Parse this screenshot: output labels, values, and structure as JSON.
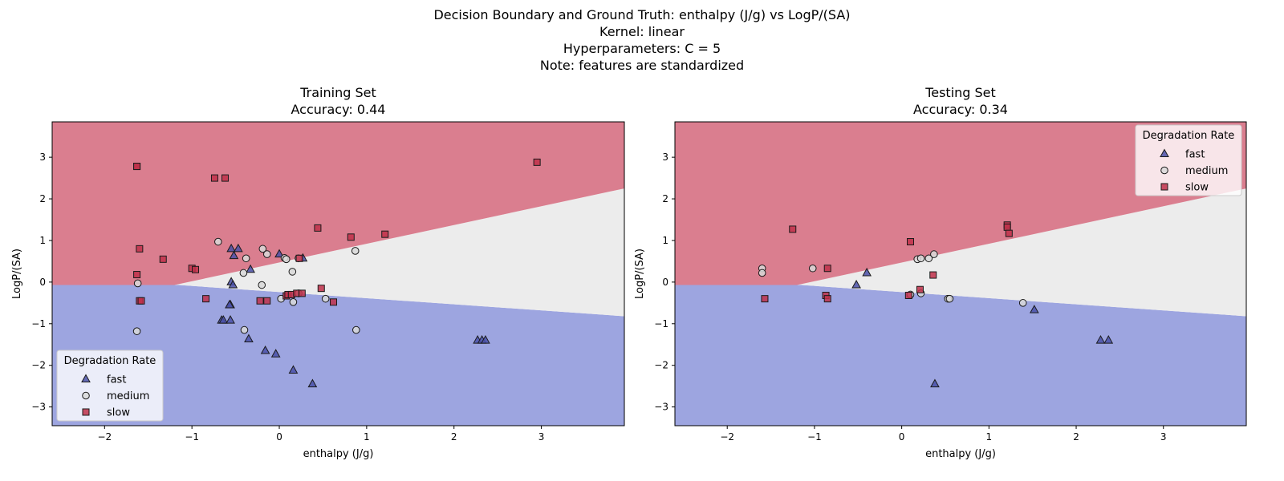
{
  "figure": {
    "suptitle_lines": [
      "Decision Boundary and Ground Truth: enthalpy (J/g) vs LogP/(SA)",
      "Kernel: linear",
      "Hyperparameters: C = 5",
      "Note: features are standardized"
    ]
  },
  "colors": {
    "fast_region": "#9da5e0",
    "medium_region": "#ececec",
    "slow_region": "#da7e8f",
    "fast_marker": "#4a50a8",
    "medium_marker": "#d9d9d9",
    "slow_marker": "#c0304a"
  },
  "chart_data": [
    {
      "type": "scatter",
      "panel": "train",
      "title": "Training Set",
      "subtitle": "Accuracy: 0.44",
      "xlabel": "enthalpy (J/g)",
      "ylabel": "LogP/(SA)",
      "xlim": [
        -2.6,
        3.95
      ],
      "ylim": [
        -3.45,
        3.85
      ],
      "xticks": [
        -2,
        -1,
        0,
        1,
        2,
        3
      ],
      "yticks": [
        -3,
        -2,
        -1,
        0,
        1,
        2,
        3
      ],
      "xtick_labels": [
        "−2",
        "−1",
        "0",
        "1",
        "2",
        "3"
      ],
      "ytick_labels": [
        "−3",
        "−2",
        "−1",
        "0",
        "1",
        "2",
        "3"
      ],
      "grid": false,
      "legend": {
        "title": "Degradation Rate",
        "position": "lower-left",
        "entries": [
          "fast",
          "medium",
          "slow"
        ]
      },
      "decision_regions": {
        "classes": [
          "fast",
          "medium",
          "slow"
        ],
        "slow_boundary_x": [
          -2.6,
          -1.2,
          3.95
        ],
        "slow_boundary_y": [
          -0.07,
          -0.07,
          2.25
        ],
        "fast_boundary_x": [
          -2.6,
          -1.15,
          3.95
        ],
        "fast_boundary_y": [
          -0.07,
          -0.07,
          -0.82
        ]
      },
      "series": [
        {
          "name": "fast",
          "marker": "triangle",
          "x": [
            -0.55,
            -0.52,
            -0.47,
            -0.55,
            -0.33,
            0.0,
            0.27,
            -0.56,
            -0.53,
            -0.57,
            -0.66,
            -0.64,
            -0.56,
            -0.35,
            -0.16,
            -0.04,
            0.16,
            0.38,
            2.27,
            2.32,
            2.36
          ],
          "y": [
            0.8,
            0.63,
            0.8,
            0.0,
            0.3,
            0.67,
            0.57,
            -0.55,
            -0.07,
            -0.55,
            -0.92,
            -0.92,
            -0.92,
            -1.37,
            -1.65,
            -1.73,
            -2.12,
            -2.45,
            -1.4,
            -1.4,
            -1.4
          ]
        },
        {
          "name": "medium",
          "marker": "circle",
          "x": [
            -0.7,
            -0.38,
            -0.41,
            -0.19,
            -0.14,
            0.06,
            0.08,
            0.15,
            -0.2,
            0.02,
            0.16,
            0.22,
            0.87,
            0.53,
            -1.62,
            -1.63,
            -0.4,
            0.88,
            0.22
          ],
          "y": [
            0.97,
            0.57,
            0.22,
            0.8,
            0.67,
            0.58,
            0.55,
            0.25,
            -0.07,
            -0.4,
            -0.48,
            -0.27,
            0.75,
            -0.4,
            -0.03,
            -1.18,
            -1.15,
            -1.15,
            0.57
          ]
        },
        {
          "name": "slow",
          "marker": "square",
          "x": [
            -1.63,
            -1.63,
            -0.74,
            -0.62,
            2.95,
            -1.6,
            -1.33,
            -1.0,
            -0.96,
            -1.63,
            -1.6,
            -1.58,
            -0.84,
            -0.22,
            -0.14,
            0.08,
            0.1,
            0.14,
            0.2,
            0.26,
            0.48,
            0.62,
            0.44,
            0.82,
            1.21,
            0.23
          ],
          "y": [
            2.78,
            2.78,
            2.5,
            2.5,
            2.88,
            0.8,
            0.55,
            0.33,
            0.3,
            0.18,
            -0.45,
            -0.45,
            -0.4,
            -0.45,
            -0.45,
            -0.33,
            -0.3,
            -0.3,
            -0.27,
            -0.27,
            -0.15,
            -0.48,
            1.3,
            1.08,
            1.15,
            0.57
          ]
        }
      ]
    },
    {
      "type": "scatter",
      "panel": "test",
      "title": "Testing Set",
      "subtitle": "Accuracy: 0.34",
      "xlabel": "enthalpy (J/g)",
      "ylabel": "LogP/(SA)",
      "xlim": [
        -2.6,
        3.95
      ],
      "ylim": [
        -3.45,
        3.85
      ],
      "xticks": [
        -2,
        -1,
        0,
        1,
        2,
        3
      ],
      "yticks": [
        -3,
        -2,
        -1,
        0,
        1,
        2,
        3
      ],
      "xtick_labels": [
        "−2",
        "−1",
        "0",
        "1",
        "2",
        "3"
      ],
      "ytick_labels": [
        "−3",
        "−2",
        "−1",
        "0",
        "1",
        "2",
        "3"
      ],
      "grid": false,
      "legend": {
        "title": "Degradation Rate",
        "position": "top-right",
        "entries": [
          "fast",
          "medium",
          "slow"
        ]
      },
      "decision_regions": {
        "classes": [
          "fast",
          "medium",
          "slow"
        ],
        "slow_boundary_x": [
          -2.6,
          -1.2,
          3.95
        ],
        "slow_boundary_y": [
          -0.07,
          -0.07,
          2.25
        ],
        "fast_boundary_x": [
          -2.6,
          -1.15,
          3.95
        ],
        "fast_boundary_y": [
          -0.07,
          -0.07,
          -0.82
        ]
      },
      "series": [
        {
          "name": "fast",
          "marker": "triangle",
          "x": [
            -0.4,
            -0.52,
            1.52,
            2.28,
            2.37,
            0.38
          ],
          "y": [
            0.22,
            -0.07,
            -0.67,
            -1.4,
            -1.4,
            -2.45
          ]
        },
        {
          "name": "medium",
          "marker": "circle",
          "x": [
            -1.6,
            -1.6,
            -1.02,
            0.18,
            0.22,
            0.31,
            0.37,
            0.1,
            0.22,
            0.53,
            0.55,
            1.39
          ],
          "y": [
            0.33,
            0.22,
            0.33,
            0.55,
            0.57,
            0.57,
            0.67,
            -0.3,
            -0.27,
            -0.4,
            -0.4,
            -0.5
          ]
        },
        {
          "name": "slow",
          "marker": "square",
          "x": [
            -1.25,
            0.1,
            -0.85,
            1.21,
            1.21,
            1.23,
            0.36,
            -1.57,
            -0.87,
            -0.85,
            0.08,
            0.21
          ],
          "y": [
            1.27,
            0.97,
            0.33,
            1.37,
            1.32,
            1.17,
            0.17,
            -0.4,
            -0.32,
            -0.4,
            -0.32,
            -0.18
          ]
        }
      ]
    }
  ]
}
